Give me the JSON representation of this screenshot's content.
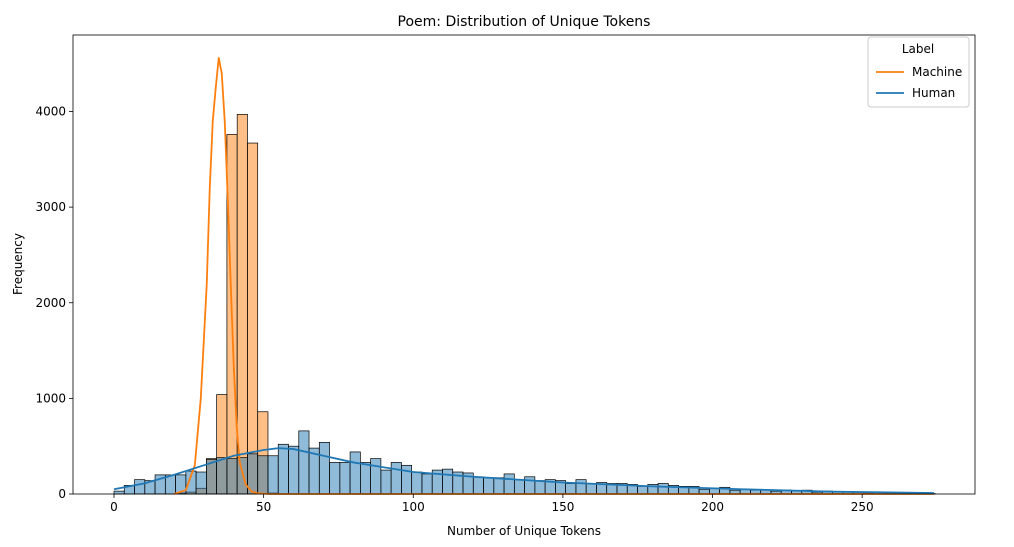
{
  "chart_data": {
    "type": "histogram",
    "title": "Poem: Distribution of Unique Tokens",
    "xlabel": "Number of Unique Tokens",
    "ylabel": "Frequency",
    "xlim": [
      -13.7,
      287.7
    ],
    "ylim": [
      0,
      4800
    ],
    "xticks": [
      0,
      50,
      100,
      150,
      200,
      250
    ],
    "yticks": [
      0,
      1000,
      2000,
      3000,
      4000
    ],
    "grid": false,
    "legend": {
      "title": "Label",
      "placement": "top-right",
      "entries": [
        {
          "name": "Machine",
          "color": "#ff7f0e"
        },
        {
          "name": "Human",
          "color": "#1f77b4"
        }
      ]
    },
    "bin_width": 3.43,
    "bin_start": 0,
    "series": [
      {
        "name": "Machine",
        "color": "#ff7f0e",
        "counts": [
          0,
          0,
          0,
          0,
          0,
          0,
          10,
          20,
          60,
          370,
          1040,
          3760,
          3970,
          3670,
          860,
          10,
          0,
          0,
          0,
          0,
          0,
          0,
          0,
          0,
          0,
          0,
          0,
          0,
          0,
          0,
          0,
          0,
          0,
          0,
          0,
          0,
          0,
          0,
          0,
          0,
          0,
          0,
          0,
          0,
          0,
          0,
          0,
          0,
          0,
          0,
          0,
          0,
          0,
          0,
          0,
          0,
          0,
          0,
          0,
          0,
          0,
          0,
          0,
          0,
          0,
          0,
          0,
          0,
          0,
          0,
          0,
          0,
          0,
          0,
          0,
          0,
          0,
          0,
          0,
          0
        ],
        "kde": {
          "x": [
            20,
            24,
            27,
            29,
            31,
            32,
            33,
            34,
            35,
            36,
            37,
            38,
            39,
            40,
            41,
            42,
            44,
            46,
            48,
            52,
            56,
            60,
            80,
            120,
            180,
            274
          ],
          "y": [
            0,
            40,
            300,
            1000,
            2200,
            3200,
            3900,
            4250,
            4560,
            4400,
            3900,
            3100,
            2200,
            1350,
            700,
            330,
            100,
            25,
            8,
            0,
            0,
            0,
            0,
            0,
            0,
            0
          ]
        }
      },
      {
        "name": "Human",
        "color": "#1f77b4",
        "counts": [
          30,
          90,
          150,
          140,
          200,
          200,
          200,
          240,
          230,
          360,
          380,
          370,
          380,
          420,
          400,
          400,
          520,
          500,
          660,
          480,
          540,
          330,
          330,
          440,
          330,
          370,
          250,
          330,
          300,
          230,
          210,
          250,
          260,
          230,
          220,
          180,
          170,
          170,
          210,
          150,
          180,
          140,
          150,
          140,
          110,
          150,
          110,
          120,
          110,
          110,
          100,
          80,
          100,
          110,
          90,
          80,
          80,
          50,
          60,
          70,
          40,
          50,
          40,
          40,
          30,
          40,
          30,
          40,
          20,
          30,
          20,
          20,
          20,
          10,
          20,
          10,
          10,
          10,
          10,
          5
        ],
        "kde": {
          "x": [
            0,
            10,
            20,
            30,
            40,
            50,
            55,
            60,
            70,
            80,
            100,
            120,
            150,
            180,
            210,
            240,
            274
          ],
          "y": [
            50,
            110,
            200,
            300,
            400,
            460,
            480,
            470,
            400,
            330,
            230,
            180,
            120,
            80,
            50,
            25,
            10
          ]
        }
      }
    ]
  }
}
